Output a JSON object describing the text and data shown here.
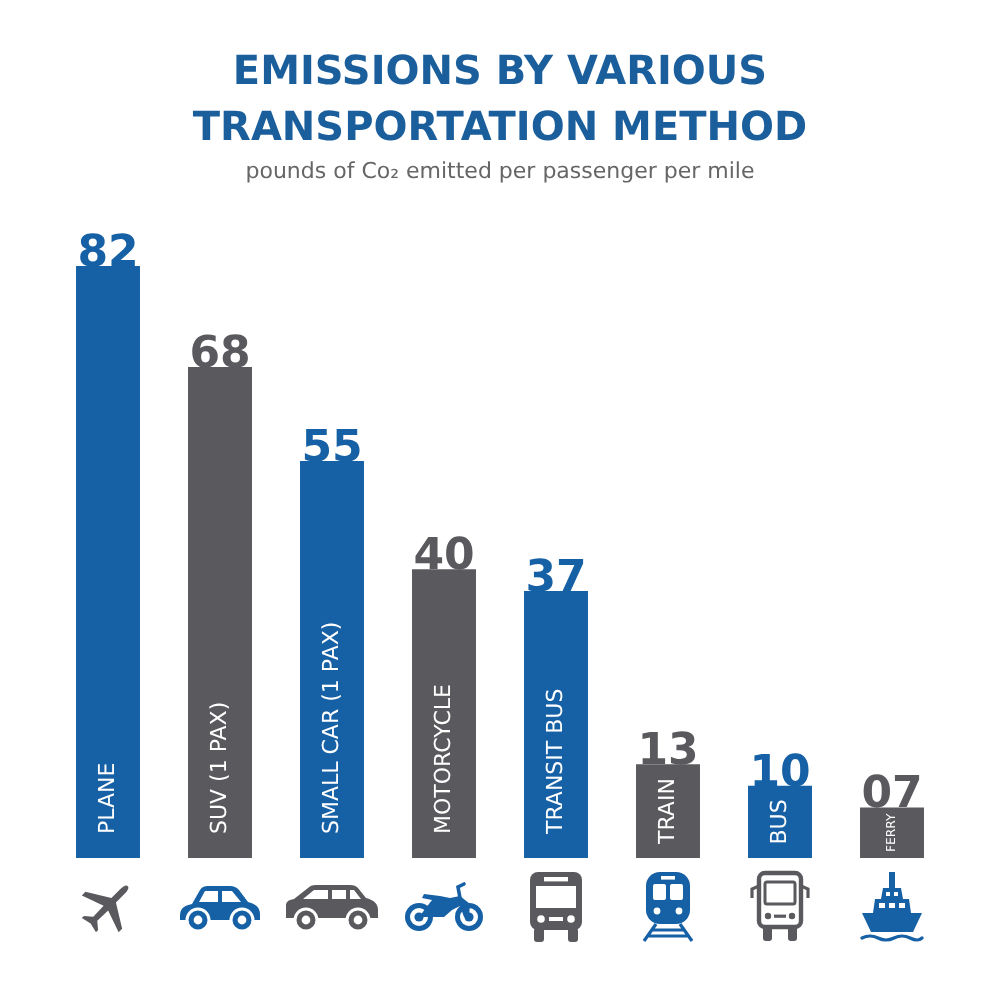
{
  "chart_data": {
    "type": "bar",
    "title": "EMISSIONS BY VARIOUS TRANSPORTATION METHOD",
    "subtitle": "pounds of Co₂ emitted per passenger per mile",
    "categories": [
      "PLANE",
      "SUV (1 PAX)",
      "SMALL CAR (1 PAX)",
      "MOTORCYCLE",
      "TRANSIT BUS",
      "TRAIN",
      "BUS",
      "FERRY"
    ],
    "values": [
      82,
      68,
      55,
      40,
      37,
      13,
      10,
      7
    ],
    "value_labels": [
      "82",
      "68",
      "55",
      "40",
      "37",
      "13",
      "10",
      "07"
    ],
    "colors": [
      "#1660a5",
      "#5a5a5e",
      "#1660a5",
      "#5a5a5e",
      "#1660a5",
      "#5a5a5e",
      "#1660a5",
      "#5a5a5e"
    ],
    "ylim": [
      0,
      82
    ],
    "tick_labels": "x"
  }
}
